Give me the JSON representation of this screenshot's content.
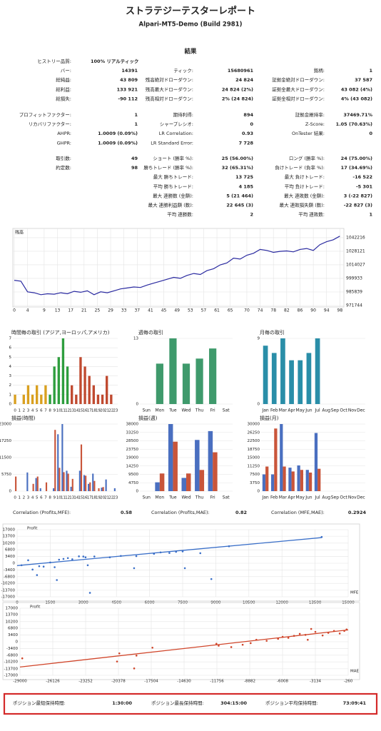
{
  "header": {
    "title": "ストラテジーテスターレポート",
    "subtitle": "Alpari-MT5-Demo (Build 2981)"
  },
  "results_title": "結果",
  "stats": [
    [
      {
        "left": {
          "label": "ヒストリー品質:",
          "value": "100% リアルティック"
        }
      },
      {
        "left": {
          "label": "バー:",
          "value": "14391"
        },
        "middle": {
          "label": "ティック:",
          "value": "15680961"
        },
        "right": {
          "label": "銘柄:",
          "value": "1"
        }
      },
      {
        "left": {
          "label": "総純益:",
          "value": "43 809"
        },
        "middle": {
          "label": "残高絶対ドローダウン:",
          "value": "24 824"
        },
        "right": {
          "label": "証拠金絶対ドローダウン:",
          "value": "37 587"
        }
      },
      {
        "left": {
          "label": "総利益:",
          "value": "133 921"
        },
        "middle": {
          "label": "残高最大ドローダウン:",
          "value": "24 824 (2%)"
        },
        "right": {
          "label": "証拠金最大ドローダウン:",
          "value": "43 082 (4%)"
        }
      },
      {
        "left": {
          "label": "総損失:",
          "value": "-90 112"
        },
        "middle": {
          "label": "残高相対ドローダウン:",
          "value": "2% (24 824)"
        },
        "right": {
          "label": "証拠金相対ドローダウン:",
          "value": "4% (43 082)"
        }
      }
    ],
    [
      {
        "left": {
          "label": "プロフィットファクター:",
          "value": "1"
        },
        "middle": {
          "label": "期待利得:",
          "value": "894"
        },
        "right": {
          "label": "証拠金維持率:",
          "value": "37469.71%"
        }
      },
      {
        "left": {
          "label": "リカバリファクター:",
          "value": "1"
        },
        "middle": {
          "label": "シャープレシオ:",
          "value": "0"
        },
        "right": {
          "label": "Z-Score:",
          "value": "1.05 (70.63%)"
        }
      },
      {
        "left": {
          "label": "AHPR:",
          "value": "1.0009 (0.09%)"
        },
        "middle": {
          "label": "LR Correlation:",
          "value": "0.93"
        },
        "right": {
          "label": "OnTester 結果:",
          "value": "0"
        }
      },
      {
        "left": {
          "label": "GHPR:",
          "value": "1.0009 (0.09%)"
        },
        "middle": {
          "label": "LR Standard Error:",
          "value": "7 728"
        }
      }
    ],
    [
      {
        "left": {
          "label": "取引数:",
          "value": "49"
        },
        "middle": {
          "label": "ショート (勝率 %):",
          "value": "25 (56.00%)"
        },
        "right": {
          "label": "ロング (勝率 %):",
          "value": "24 (75.00%)"
        }
      },
      {
        "left": {
          "label": "約定数:",
          "value": "98"
        },
        "middle": {
          "label": "勝ちトレード (勝率 %):",
          "value": "32 (65.31%)"
        },
        "right": {
          "label": "負けトレード (負率 %):",
          "value": "17 (34.69%)"
        }
      },
      {
        "middle": {
          "label": "最大 勝ちトレード:",
          "value": "13 725"
        },
        "right": {
          "label": "最大 負けトレード:",
          "value": "-16 522"
        }
      },
      {
        "middle": {
          "label": "平均 勝ちトレード:",
          "value": "4 185"
        },
        "right": {
          "label": "平均 負けトレード:",
          "value": "-5 301"
        }
      },
      {
        "middle": {
          "label": "最大 連勝数 (金額):",
          "value": "5 (21 464)"
        },
        "right": {
          "label": "最大 連敗数 (金額):",
          "value": "3 (-22 827)"
        }
      },
      {
        "middle": {
          "label": "最大 連勝利益額 (数):",
          "value": "22 645 (3)"
        },
        "right": {
          "label": "最大 連敗損失額 (数):",
          "value": "-22 827 (3)"
        }
      },
      {
        "middle": {
          "label": "平均 連勝数:",
          "value": "2"
        },
        "right": {
          "label": "平均 連敗数:",
          "value": "1"
        }
      }
    ]
  ],
  "charts": {
    "balance": {
      "type": "line",
      "title": "残高",
      "color": "#2a2aa0",
      "x": [
        0,
        2,
        4,
        6,
        8,
        10,
        12,
        14,
        16,
        18,
        20,
        22,
        24,
        26,
        28,
        30,
        32,
        34,
        36,
        38,
        40,
        42,
        44,
        46,
        48,
        50,
        52,
        54,
        56,
        58,
        60,
        62,
        64,
        66,
        68,
        70,
        72,
        74,
        76,
        78,
        80,
        82,
        84,
        86,
        88,
        90,
        92,
        94,
        96,
        98
      ],
      "values": [
        998000,
        997000,
        986000,
        985000,
        983000,
        984000,
        983500,
        985000,
        984000,
        986500,
        985500,
        987000,
        983000,
        986000,
        985000,
        987000,
        989000,
        990000,
        991000,
        990500,
        993000,
        995000,
        997000,
        999000,
        1001000,
        1000000,
        1003000,
        1005000,
        1004000,
        1008000,
        1010000,
        1014000,
        1016000,
        1021000,
        1020000,
        1024000,
        1026000,
        1030000,
        1029000,
        1027000,
        1028000,
        1028500,
        1027500,
        1030000,
        1031000,
        1029000,
        1035000,
        1038000,
        1040000,
        1043809
      ],
      "xlim": [
        0,
        99
      ],
      "xticks": [
        0,
        4,
        9,
        13,
        17,
        21,
        25,
        29,
        33,
        37,
        41,
        45,
        49,
        53,
        57,
        61,
        65,
        70,
        74,
        78,
        82,
        86,
        90,
        94,
        98
      ],
      "ylim": [
        971744,
        1045000
      ],
      "yticks": [
        1042216,
        1028121,
        1014027,
        999933,
        985839,
        971744
      ],
      "grid": true
    },
    "hourly_trades": {
      "type": "bar",
      "title": "時間毎の取引 (アジア,ヨーロッパ,アメリカ)",
      "categories": [
        "0",
        "1",
        "2",
        "3",
        "4",
        "5",
        "6",
        "7",
        "8",
        "9",
        "10",
        "11",
        "12",
        "13",
        "14",
        "15",
        "16",
        "17",
        "18",
        "19",
        "20",
        "21",
        "22",
        "23"
      ],
      "values": [
        1,
        0,
        1,
        2,
        1,
        2,
        1,
        2,
        1,
        4,
        5,
        7,
        4,
        2,
        1,
        5,
        4,
        3,
        2,
        1,
        1,
        3,
        1,
        0
      ],
      "bar_colors": [
        "#d9a020",
        "#d9a020",
        "#d9a020",
        "#d9a020",
        "#d9a020",
        "#d9a020",
        "#d9a020",
        "#d9a020",
        "#2e9e3e",
        "#2e9e3e",
        "#2e9e3e",
        "#2e9e3e",
        "#2e9e3e",
        "#c04a30",
        "#c04a30",
        "#c04a30",
        "#c04a30",
        "#c04a30",
        "#c04a30",
        "#c04a30",
        "#c04a30",
        "#c04a30",
        "#c04a30",
        "#c04a30"
      ],
      "ylim": [
        0,
        7
      ],
      "yticks": [
        0,
        1,
        2,
        3,
        4,
        5,
        6,
        7
      ],
      "grid": true
    },
    "weekday_trades": {
      "type": "bar",
      "title": "週毎の取引",
      "color": "#3f9a6c",
      "categories": [
        "Sun",
        "Mon",
        "Tue",
        "Wed",
        "Thu",
        "Fri",
        "Sat"
      ],
      "values": [
        0,
        8,
        13,
        8,
        9,
        11,
        0
      ],
      "ylim": [
        0,
        13
      ],
      "yticks": [
        0,
        13
      ],
      "grid": true
    },
    "monthly_trades": {
      "type": "bar",
      "title": "月毎の取引",
      "color": "#2a8ea8",
      "categories": [
        "Jan",
        "Feb",
        "Mar",
        "Apr",
        "May",
        "Jun",
        "Jul",
        "Aug",
        "Sep",
        "Oct",
        "Nov",
        "Dec"
      ],
      "values": [
        8,
        7,
        9,
        6,
        6,
        7,
        9,
        0,
        0,
        0,
        0,
        0
      ],
      "ylim": [
        0,
        9
      ],
      "yticks": [
        0,
        9
      ],
      "grid": true
    },
    "hourly_profit": {
      "type": "bar",
      "title": "損益(時間)",
      "categories": [
        "0",
        "1",
        "2",
        "3",
        "4",
        "5",
        "6",
        "7",
        "8",
        "9",
        "10",
        "11",
        "12",
        "13",
        "14",
        "15",
        "16",
        "17",
        "18",
        "19",
        "20",
        "21",
        "22",
        "23"
      ],
      "series": [
        {
          "color": "#4a6fc0",
          "values": [
            0,
            0,
            0,
            6400,
            0,
            4500,
            1000,
            0,
            0,
            1000,
            19500,
            23000,
            7000,
            1500,
            0,
            7000,
            5500,
            2500,
            6000,
            0,
            1200,
            4000,
            0,
            1000
          ]
        },
        {
          "color": "#c9553a",
          "values": [
            5000,
            0,
            0,
            0,
            2500,
            5000,
            0,
            3000,
            0,
            21000,
            8000,
            6500,
            6000,
            4200,
            0,
            16000,
            5300,
            3000,
            3500,
            1000,
            1400,
            0,
            0,
            0
          ]
        }
      ],
      "ylim": [
        0,
        23000
      ],
      "yticks": [
        0,
        5750,
        11500,
        17250,
        23000
      ],
      "grid": true
    },
    "weekday_profit": {
      "type": "bar",
      "title": "損益(週)",
      "categories": [
        "Sun",
        "Mon",
        "Tue",
        "Wed",
        "Thu",
        "Fri",
        "Sat"
      ],
      "series": [
        {
          "color": "#4a6fc0",
          "values": [
            0,
            5000,
            38000,
            7500,
            29000,
            34000,
            0
          ]
        },
        {
          "color": "#c9553a",
          "values": [
            0,
            10000,
            28000,
            10000,
            12000,
            22000,
            0
          ]
        }
      ],
      "ylim": [
        0,
        38000
      ],
      "yticks": [
        0,
        4750,
        9500,
        14250,
        19000,
        23750,
        28500,
        33250,
        38000
      ],
      "grid": true
    },
    "monthly_profit": {
      "type": "bar",
      "title": "損益(月)",
      "categories": [
        "Jan",
        "Feb",
        "Mar",
        "Apr",
        "May",
        "Jun",
        "Jul",
        "Aug",
        "Sep",
        "Oct",
        "Nov",
        "Dec"
      ],
      "series": [
        {
          "color": "#4a6fc0",
          "values": [
            7500,
            7500,
            30000,
            10500,
            11500,
            9500,
            26000,
            0,
            0,
            0,
            0,
            0
          ]
        },
        {
          "color": "#c9553a",
          "values": [
            11000,
            28000,
            11000,
            8800,
            9500,
            8300,
            10000,
            0,
            0,
            0,
            0,
            0
          ]
        }
      ],
      "ylim": [
        0,
        30000
      ],
      "yticks": [
        0,
        3750,
        7500,
        11250,
        15000,
        18750,
        22500,
        26250,
        30000
      ],
      "grid": true
    },
    "mfe_scatter": {
      "type": "scatter",
      "y_label": "Profit",
      "x_label": "MFE",
      "color": "#3a6fc8",
      "x": [
        200,
        500,
        700,
        900,
        1000,
        1200,
        1500,
        1700,
        1900,
        2100,
        2300,
        2500,
        2800,
        3000,
        3100,
        3200,
        3300,
        3500,
        4200,
        4700,
        5400,
        6200,
        6500,
        6900,
        7200,
        7500,
        8300,
        9600,
        13800,
        5300,
        7600,
        8800,
        1800
      ],
      "y": [
        -1000,
        1500,
        -3200,
        -6000,
        -1500,
        -1700,
        400,
        -2000,
        1800,
        2200,
        2600,
        2000,
        3500,
        3400,
        3000,
        -1000,
        -15000,
        3400,
        3000,
        3700,
        3600,
        4800,
        5500,
        5200,
        5800,
        6000,
        5100,
        8600,
        13300,
        -2500,
        -2500,
        -8000,
        -8500
      ],
      "trend": {
        "x": [
          0,
          13800
        ],
        "y": [
          -1200,
          13000
        ]
      },
      "xlim": [
        0,
        15000
      ],
      "xticks": [
        0,
        1500,
        3000,
        4500,
        6000,
        7500,
        9000,
        10500,
        12000,
        13500,
        15000
      ],
      "ylim": [
        -17000,
        17000
      ],
      "yticks": [
        17000,
        13700,
        10200,
        6800,
        3400,
        0,
        -3400,
        -6800,
        -10200,
        -13700,
        -17000
      ],
      "grid": true
    },
    "mae_scatter": {
      "type": "scatter",
      "y_label": "Profit",
      "x_label": "MAE",
      "color": "#d0452a",
      "x": [
        -28800,
        -20500,
        -19000,
        -20300,
        -18800,
        -17400,
        -11800,
        -11600,
        -10500,
        -9500,
        -8800,
        -8300,
        -7400,
        -6400,
        -6000,
        -5500,
        -5000,
        -4500,
        -4000,
        -3800,
        -3500,
        -3134,
        -2500,
        -2000,
        -1500,
        -1000,
        -600,
        -400
      ],
      "y": [
        -8400,
        -10000,
        -13500,
        -5900,
        -7000,
        -3000,
        -1000,
        -2000,
        -2700,
        -1500,
        -700,
        1000,
        500,
        1500,
        2500,
        2000,
        3000,
        4000,
        3500,
        1000,
        6500,
        5000,
        3200,
        4500,
        5500,
        4200,
        5500,
        6200
      ],
      "trend": {
        "x": [
          -29000,
          -260
        ],
        "y": [
          -12800,
          6000
        ]
      },
      "xlim": [
        -29000,
        -260
      ],
      "xticks": [
        -29000,
        -26126,
        -23252,
        -20378,
        -17504,
        -14630,
        -11756,
        -8882,
        -6008,
        -3134,
        -260
      ],
      "ylim": [
        -17000,
        17000
      ],
      "yticks": [
        17000,
        13700,
        10200,
        6800,
        3400,
        0,
        -3400,
        -6800,
        -10200,
        -13700,
        -17000
      ],
      "grid": true
    }
  },
  "correlations": [
    {
      "label": "Correlation (Profits,MFE):",
      "value": "0.58"
    },
    {
      "label": "Correlation (Profits,MAE):",
      "value": "0.82"
    },
    {
      "label": "Correlation (MFE,MAE):",
      "value": "0.2924"
    }
  ],
  "holding_times": [
    {
      "label": "ポジション最短保持時間:",
      "value": "1:30:00"
    },
    {
      "label": "ポジション最長保持時間:",
      "value": "304:15:00"
    },
    {
      "label": "ポジション平均保持時間:",
      "value": "73:09:41"
    }
  ]
}
